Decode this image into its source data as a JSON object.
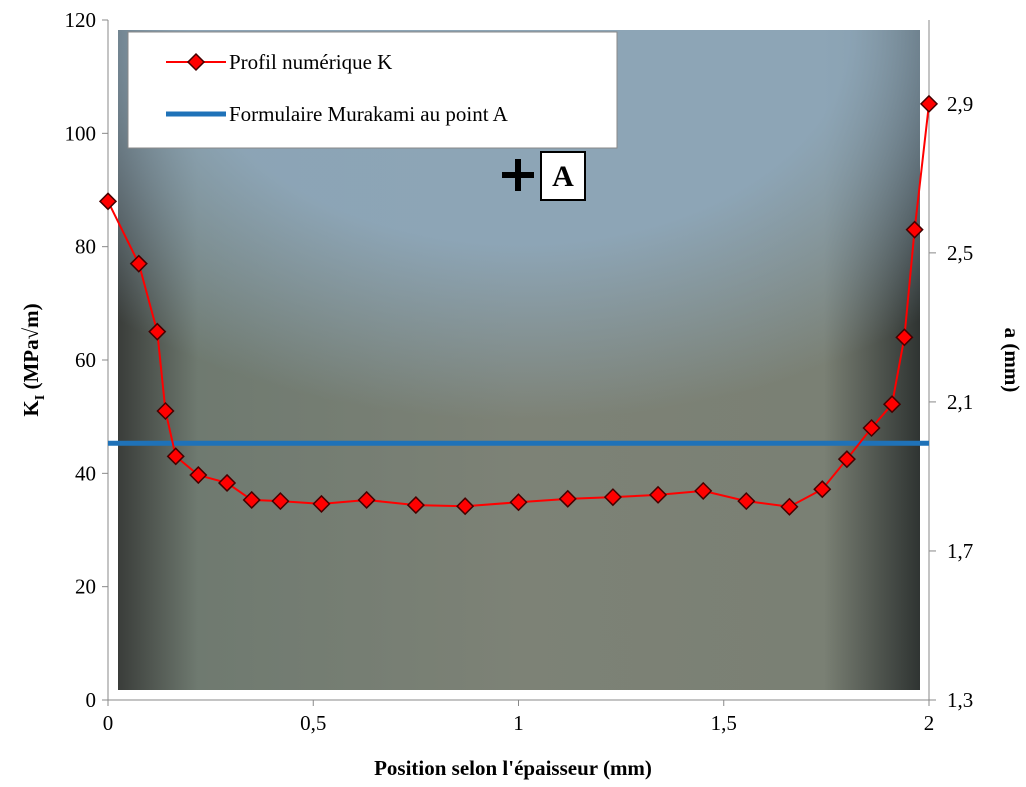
{
  "chart_data": {
    "type": "line",
    "x_label": "Position selon l'épaisseur (mm)",
    "y_label": [
      "K",
      "I",
      " (MPa√m)"
    ],
    "y2_label": "a (mm)",
    "annotation": "A",
    "xlim": [
      0,
      2
    ],
    "xticks": [
      0,
      {
        "value": 0.5,
        "label": "0,5"
      },
      1,
      {
        "value": 1.5,
        "label": "1,5"
      },
      2
    ],
    "ylim": [
      0,
      120
    ],
    "yticks": [
      0,
      20,
      40,
      60,
      80,
      100,
      120
    ],
    "y2lim": [
      1.3,
      3.125
    ],
    "y2ticks": [
      {
        "value": 1.3,
        "label": "1,3"
      },
      {
        "value": 1.7,
        "label": "1,7"
      },
      {
        "value": 2.1,
        "label": "2,1"
      },
      {
        "value": 2.5,
        "label": "2,5"
      },
      {
        "value": 2.9,
        "label": "2,9"
      }
    ],
    "series": [
      {
        "name": "Profil numérique K",
        "color": "#ff0000",
        "x": [
          0,
          0.075,
          0.12,
          0.14,
          0.165,
          0.22,
          0.29,
          0.35,
          0.42,
          0.52,
          0.63,
          0.75,
          0.87,
          1.0,
          1.12,
          1.23,
          1.34,
          1.45,
          1.555,
          1.66,
          1.74,
          1.8,
          1.86,
          1.91,
          1.94,
          1.965,
          2.0
        ],
        "values": [
          88,
          77,
          65,
          51,
          43,
          39.7,
          38.3,
          35.3,
          35.1,
          34.6,
          35.3,
          34.4,
          34.2,
          34.9,
          35.5,
          35.8,
          36.2,
          36.9,
          35.1,
          34.1,
          37.2,
          42.5,
          48,
          52.2,
          64,
          83,
          105.2
        ]
      },
      {
        "name": "Formulaire Murakami au point A",
        "color": "#1f72b8",
        "x": [
          0,
          2
        ],
        "values": [
          45.3,
          45.3
        ]
      }
    ]
  }
}
